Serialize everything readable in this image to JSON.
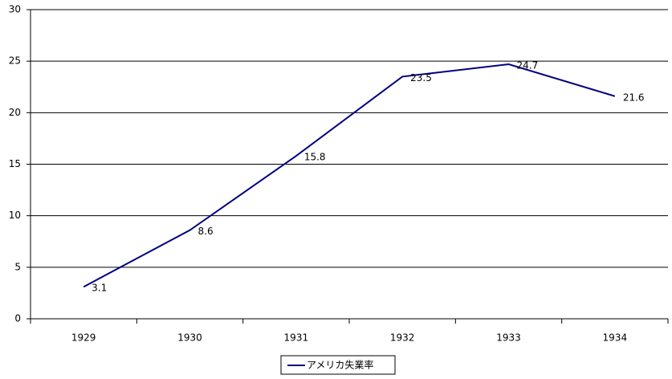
{
  "chart_data": {
    "type": "line",
    "categories": [
      "1929",
      "1930",
      "1931",
      "1932",
      "1933",
      "1934"
    ],
    "series": [
      {
        "name": "アメリカ失業率",
        "color": "#000080",
        "values": [
          3.1,
          8.6,
          15.8,
          23.5,
          24.7,
          21.6
        ]
      }
    ],
    "ylim": [
      0,
      30
    ],
    "yticks": [
      0,
      5,
      10,
      15,
      20,
      25,
      30
    ],
    "grid": true,
    "legend": "bottom"
  }
}
